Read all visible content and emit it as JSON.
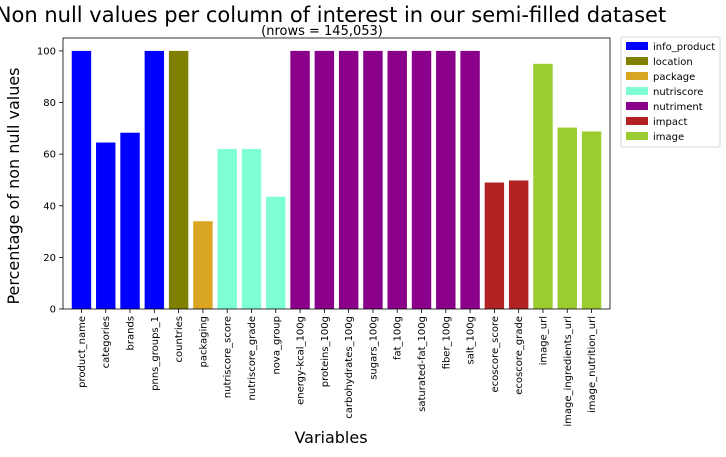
{
  "chart_data": {
    "type": "bar",
    "title": "Non null values per column of interest in our semi-filled dataset",
    "subtitle": "(nrows = 145,053)",
    "xlabel": "Variables",
    "ylabel": "Percentage of non null values",
    "ylim": [
      0,
      105
    ],
    "yticks": [
      0,
      20,
      40,
      60,
      80,
      100
    ],
    "grid": false,
    "legend_position": "outside-top-right",
    "categories": [
      "product_name",
      "categories",
      "brands",
      "pnns_groups_1",
      "countries",
      "packaging",
      "nutriscore_score",
      "nutriscore_grade",
      "nova_group",
      "energy-kcal_100g",
      "proteins_100g",
      "carbohydrates_100g",
      "sugars_100g",
      "fat_100g",
      "saturated-fat_100g",
      "fiber_100g",
      "salt_100g",
      "ecoscore_score",
      "ecoscore_grade",
      "image_url",
      "image_ingredients_url",
      "image_nutrition_url"
    ],
    "values": [
      100,
      64.5,
      68.3,
      100,
      100,
      34.0,
      62.0,
      62.0,
      43.5,
      100,
      100,
      100,
      100,
      100,
      100,
      100,
      100,
      49.0,
      49.8,
      95.0,
      70.3,
      68.8
    ],
    "groups": [
      "info_product",
      "info_product",
      "info_product",
      "info_product",
      "location",
      "package",
      "nutriscore",
      "nutriscore",
      "nutriscore",
      "nutriment",
      "nutriment",
      "nutriment",
      "nutriment",
      "nutriment",
      "nutriment",
      "nutriment",
      "nutriment",
      "impact",
      "impact",
      "image",
      "image",
      "image"
    ],
    "legend": [
      {
        "name": "info_product",
        "color": "#0000ff"
      },
      {
        "name": "location",
        "color": "#808000"
      },
      {
        "name": "package",
        "color": "#daa520"
      },
      {
        "name": "nutriscore",
        "color": "#7fffd4"
      },
      {
        "name": "nutriment",
        "color": "#8b008b"
      },
      {
        "name": "impact",
        "color": "#b22222"
      },
      {
        "name": "image",
        "color": "#9acd32"
      }
    ]
  }
}
